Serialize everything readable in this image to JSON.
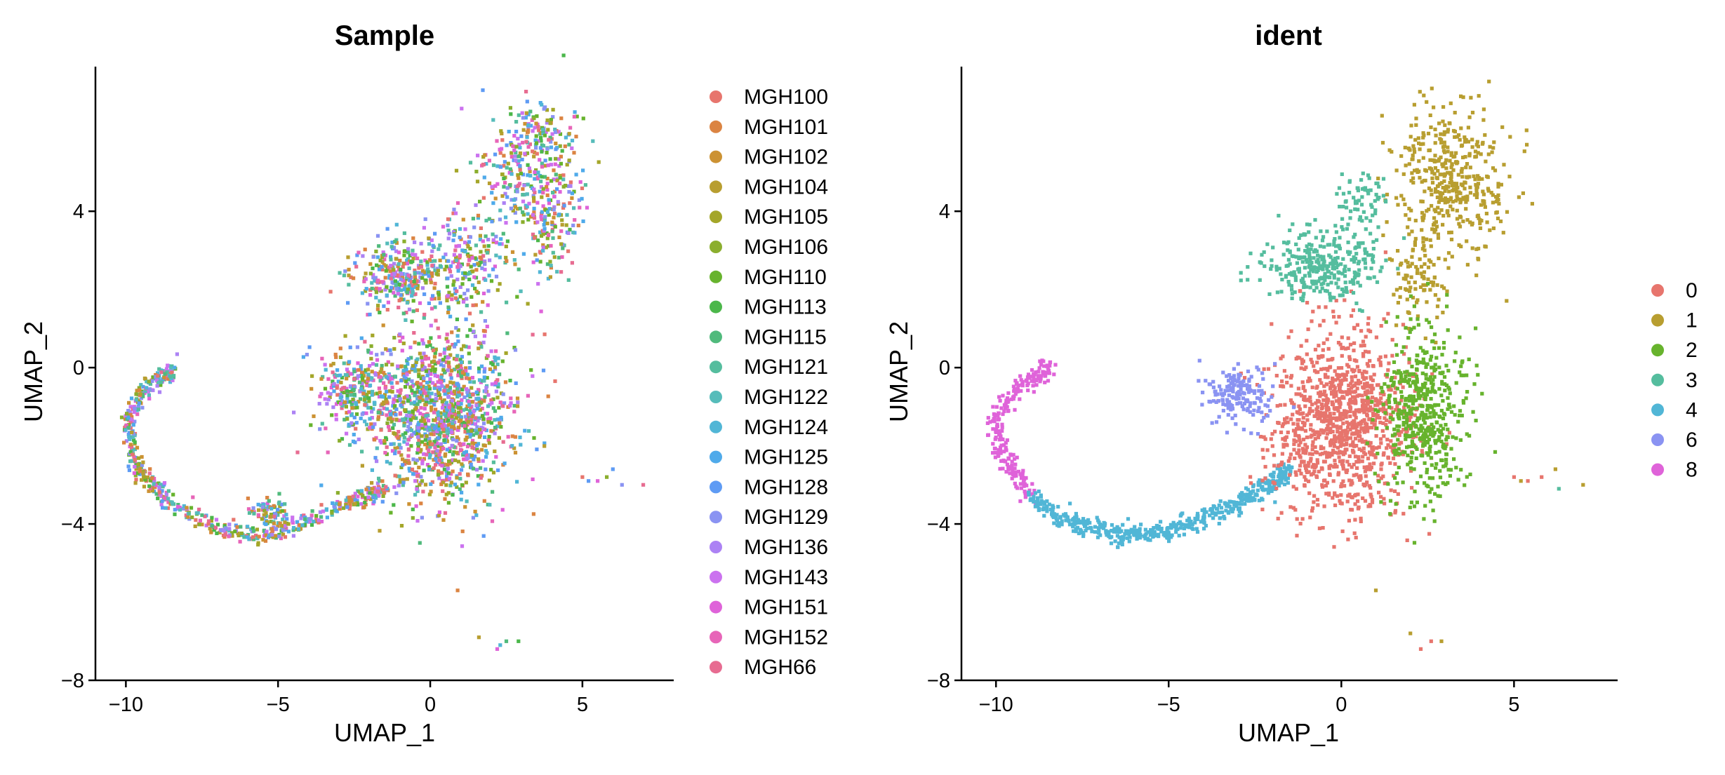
{
  "chart_data": [
    {
      "type": "scatter",
      "title": "Sample",
      "xlabel": "UMAP_1",
      "ylabel": "UMAP_2",
      "xlim": [
        -11,
        8
      ],
      "ylim": [
        -8,
        7.7
      ],
      "xticks": [
        -10,
        -5,
        0,
        5
      ],
      "xtick_labels": [
        "−10",
        "−5",
        "0",
        "5"
      ],
      "yticks": [
        -8,
        -4,
        0,
        4
      ],
      "ytick_labels": [
        "−8",
        "−4",
        "0",
        "4"
      ],
      "grid": false,
      "legend_position": "right",
      "point_coloring": "mixed",
      "legend": [
        {
          "label": "MGH100",
          "color": "#E7756D"
        },
        {
          "label": "MGH101",
          "color": "#DB8442"
        },
        {
          "label": "MGH102",
          "color": "#CC9233"
        },
        {
          "label": "MGH104",
          "color": "#B89E30"
        },
        {
          "label": "MGH105",
          "color": "#A4A629"
        },
        {
          "label": "MGH106",
          "color": "#8BAE2E"
        },
        {
          "label": "MGH110",
          "color": "#67B32D"
        },
        {
          "label": "MGH113",
          "color": "#4BB74A"
        },
        {
          "label": "MGH115",
          "color": "#50BA7C"
        },
        {
          "label": "MGH121",
          "color": "#55BD9E"
        },
        {
          "label": "MGH122",
          "color": "#56BCBA"
        },
        {
          "label": "MGH124",
          "color": "#51B6D6"
        },
        {
          "label": "MGH125",
          "color": "#4FAAEA"
        },
        {
          "label": "MGH128",
          "color": "#5E9BF4"
        },
        {
          "label": "MGH129",
          "color": "#8A93F2"
        },
        {
          "label": "MGH136",
          "color": "#AC82F4"
        },
        {
          "label": "MGH143",
          "color": "#CB72EF"
        },
        {
          "label": "MGH151",
          "color": "#DF63D9"
        },
        {
          "label": "MGH152",
          "color": "#E765B8"
        },
        {
          "label": "MGH66",
          "color": "#E76C91"
        }
      ],
      "regions": [
        {
          "cx": 0.4,
          "cy": -1.2,
          "rx": 2.3,
          "ry": 2.2,
          "n": 1300
        },
        {
          "cx": -2.4,
          "cy": -0.6,
          "rx": 1.3,
          "ry": 1.1,
          "n": 260
        },
        {
          "cx": -1.0,
          "cy": 2.4,
          "rx": 1.5,
          "ry": 0.9,
          "n": 300
        },
        {
          "cx": 1.2,
          "cy": 2.7,
          "rx": 1.7,
          "ry": 1.4,
          "n": 220
        },
        {
          "cx": 3.2,
          "cy": 5.0,
          "rx": 1.7,
          "ry": 1.6,
          "n": 300
        },
        {
          "cx": 4.0,
          "cy": 3.5,
          "rx": 0.9,
          "ry": 1.2,
          "n": 110
        },
        {
          "cx": 3.7,
          "cy": 6.2,
          "rx": 0.9,
          "ry": 0.5,
          "n": 60
        },
        {
          "cx": -5.3,
          "cy": -3.7,
          "rx": 0.7,
          "ry": 0.35,
          "n": 70
        }
      ],
      "arc": {
        "x": [
          -8.4,
          -9.3,
          -10.0,
          -9.6,
          -8.5,
          -7.0,
          -5.5,
          -4.0,
          -2.5,
          -1.5
        ],
        "y": [
          0.0,
          -0.5,
          -1.4,
          -2.6,
          -3.5,
          -4.1,
          -4.3,
          -3.9,
          -3.4,
          -3.1
        ],
        "n": 620
      },
      "outliers": {
        "x": [
          5.0,
          5.2,
          5.5,
          5.8,
          6.0,
          6.3,
          7.0,
          0.9,
          2.2,
          2.5,
          2.9,
          1.6,
          2.3
        ],
        "y": [
          -2.8,
          -2.9,
          -2.9,
          -2.8,
          -2.6,
          -3.0,
          -3.0,
          -5.7,
          -7.2,
          -7.0,
          -7.0,
          -6.9,
          -7.1
        ]
      }
    },
    {
      "type": "scatter",
      "title": "ident",
      "xlabel": "UMAP_1",
      "ylabel": "UMAP_2",
      "xlim": [
        -11,
        8
      ],
      "ylim": [
        -8,
        7.7
      ],
      "xticks": [
        -10,
        -5,
        0,
        5
      ],
      "xtick_labels": [
        "−10",
        "−5",
        "0",
        "5"
      ],
      "yticks": [
        -8,
        -4,
        0,
        4
      ],
      "ytick_labels": [
        "−8",
        "−4",
        "0",
        "4"
      ],
      "grid": false,
      "legend_position": "right",
      "legend": [
        {
          "label": "0",
          "color": "#E7756D"
        },
        {
          "label": "1",
          "color": "#B89E30"
        },
        {
          "label": "2",
          "color": "#67B32D"
        },
        {
          "label": "3",
          "color": "#55BD9E"
        },
        {
          "label": "4",
          "color": "#51B6D6"
        },
        {
          "label": "6",
          "color": "#8A93F2"
        },
        {
          "label": "8",
          "color": "#DF63D9"
        }
      ],
      "clusters": [
        {
          "label": "0",
          "cx": 0.0,
          "cy": -1.4,
          "rx": 2.0,
          "ry": 2.3,
          "n": 1100
        },
        {
          "label": "1",
          "cx": 3.2,
          "cy": 4.8,
          "rx": 1.6,
          "ry": 1.9,
          "n": 420
        },
        {
          "label": "1",
          "cx": 2.2,
          "cy": 2.4,
          "rx": 0.9,
          "ry": 1.2,
          "n": 90
        },
        {
          "label": "2",
          "cx": 2.4,
          "cy": -1.2,
          "rx": 1.2,
          "ry": 2.1,
          "n": 500
        },
        {
          "label": "3",
          "cx": -0.6,
          "cy": 2.6,
          "rx": 1.8,
          "ry": 0.9,
          "n": 320
        },
        {
          "label": "3",
          "cx": 0.6,
          "cy": 4.3,
          "rx": 0.8,
          "ry": 0.6,
          "n": 60
        },
        {
          "label": "6",
          "cx": -3.0,
          "cy": -0.7,
          "rx": 0.9,
          "ry": 0.8,
          "n": 160
        }
      ],
      "arcs": [
        {
          "label": "8",
          "x": [
            -8.4,
            -9.2,
            -10.0,
            -9.8,
            -9.0
          ],
          "y": [
            0.0,
            -0.4,
            -1.3,
            -2.3,
            -3.3
          ],
          "n": 230
        },
        {
          "label": "4",
          "x": [
            -9.0,
            -8.0,
            -6.5,
            -5.0,
            -3.5,
            -2.3,
            -1.6
          ],
          "y": [
            -3.3,
            -3.9,
            -4.3,
            -4.2,
            -3.7,
            -3.1,
            -2.7
          ],
          "n": 520
        }
      ],
      "outliers": [
        {
          "label": "0",
          "x": [
            5.0,
            5.4,
            5.8,
            2.3,
            2.6
          ],
          "y": [
            -2.8,
            -2.9,
            -2.8,
            -7.2,
            -7.0
          ]
        },
        {
          "label": "1",
          "x": [
            5.2,
            6.2,
            7.0,
            1.0,
            2.0,
            2.9
          ],
          "y": [
            -2.9,
            -2.6,
            -3.0,
            -5.7,
            -6.8,
            -7.0
          ]
        },
        {
          "label": "3",
          "x": [
            6.3
          ],
          "y": [
            -3.1
          ]
        }
      ]
    }
  ]
}
